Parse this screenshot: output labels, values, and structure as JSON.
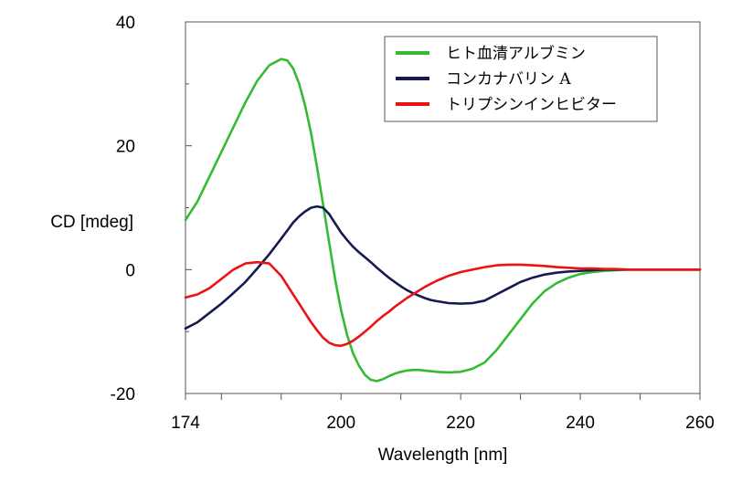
{
  "chart_data": {
    "type": "line",
    "title": "",
    "xlabel": "Wavelength [nm]",
    "ylabel": "CD [mdeg]",
    "xlim": [
      174,
      260
    ],
    "ylim": [
      -20,
      40
    ],
    "xticks": [
      174,
      200,
      220,
      240,
      260
    ],
    "xminor": [
      180,
      190,
      210,
      230,
      250
    ],
    "yticks": [
      -20,
      0,
      20,
      40
    ],
    "yminor": [
      -10,
      10,
      30
    ],
    "grid": false,
    "legend_position": "top-right",
    "series": [
      {
        "name": "ヒト血清アルブミン",
        "color": "#33bb33",
        "x": [
          174,
          176,
          178,
          180,
          182,
          184,
          186,
          188,
          190,
          191,
          192,
          193,
          194,
          195,
          196,
          197,
          198,
          199,
          200,
          201,
          202,
          203,
          204,
          205,
          206,
          207,
          208,
          209,
          210,
          211,
          212,
          213,
          214,
          215,
          216,
          218,
          220,
          222,
          224,
          226,
          228,
          230,
          232,
          234,
          236,
          238,
          240,
          242,
          244,
          246,
          248,
          250,
          254,
          260
        ],
        "y": [
          8,
          11,
          15,
          19,
          23,
          27,
          30.5,
          33,
          34,
          33.8,
          32.5,
          30,
          26.5,
          22,
          16.5,
          10.5,
          4.5,
          -1.5,
          -6.5,
          -10.5,
          -13.5,
          -15.5,
          -17,
          -17.8,
          -18,
          -17.7,
          -17.2,
          -16.8,
          -16.5,
          -16.3,
          -16.2,
          -16.2,
          -16.3,
          -16.4,
          -16.5,
          -16.6,
          -16.5,
          -16,
          -15,
          -13,
          -10.5,
          -8,
          -5.5,
          -3.5,
          -2.2,
          -1.3,
          -0.7,
          -0.4,
          -0.2,
          -0.1,
          0,
          0,
          0,
          0
        ]
      },
      {
        "name": "コンカナバリン A",
        "color": "#151a50",
        "x": [
          174,
          176,
          178,
          180,
          182,
          184,
          186,
          188,
          190,
          191,
          192,
          193,
          194,
          195,
          196,
          197,
          198,
          199,
          200,
          201,
          202,
          203,
          204,
          205,
          206,
          207,
          208,
          209,
          210,
          211,
          212,
          213,
          214,
          215,
          216,
          218,
          220,
          222,
          224,
          226,
          228,
          230,
          232,
          234,
          236,
          238,
          240,
          242,
          244,
          246,
          248,
          250,
          254,
          260
        ],
        "y": [
          -9.5,
          -8.5,
          -7,
          -5.5,
          -3.8,
          -2,
          0.2,
          2.5,
          5,
          6.3,
          7.6,
          8.6,
          9.4,
          10,
          10.2,
          10,
          9,
          7.5,
          6,
          4.8,
          3.7,
          2.8,
          2,
          1.2,
          0.3,
          -0.5,
          -1.3,
          -2,
          -2.7,
          -3.3,
          -3.8,
          -4.2,
          -4.6,
          -4.9,
          -5.1,
          -5.4,
          -5.5,
          -5.4,
          -5,
          -4,
          -3,
          -2,
          -1.3,
          -0.8,
          -0.5,
          -0.3,
          -0.2,
          -0.1,
          0,
          0,
          0,
          0,
          0,
          0
        ]
      },
      {
        "name": "トリプシンインヒビター",
        "color": "#ee1111",
        "x": [
          174,
          176,
          178,
          180,
          182,
          184,
          186,
          188,
          190,
          191,
          192,
          193,
          194,
          195,
          196,
          197,
          198,
          199,
          200,
          201,
          202,
          203,
          204,
          205,
          206,
          207,
          208,
          209,
          210,
          211,
          212,
          213,
          214,
          215,
          216,
          218,
          220,
          222,
          224,
          226,
          228,
          230,
          232,
          234,
          236,
          238,
          240,
          242,
          244,
          246,
          248,
          250,
          254,
          260
        ],
        "y": [
          -4.5,
          -4,
          -3,
          -1.5,
          0,
          1,
          1.2,
          1,
          -1,
          -2.5,
          -4,
          -5.5,
          -7,
          -8.5,
          -9.8,
          -11,
          -11.8,
          -12.2,
          -12.3,
          -12,
          -11.5,
          -10.8,
          -10,
          -9.2,
          -8.3,
          -7.5,
          -6.8,
          -6,
          -5.3,
          -4.6,
          -4,
          -3.4,
          -2.8,
          -2.3,
          -1.8,
          -1,
          -0.4,
          0,
          0.4,
          0.7,
          0.8,
          0.8,
          0.7,
          0.6,
          0.4,
          0.3,
          0.2,
          0.2,
          0.1,
          0.1,
          0,
          0,
          0,
          0
        ]
      }
    ]
  }
}
